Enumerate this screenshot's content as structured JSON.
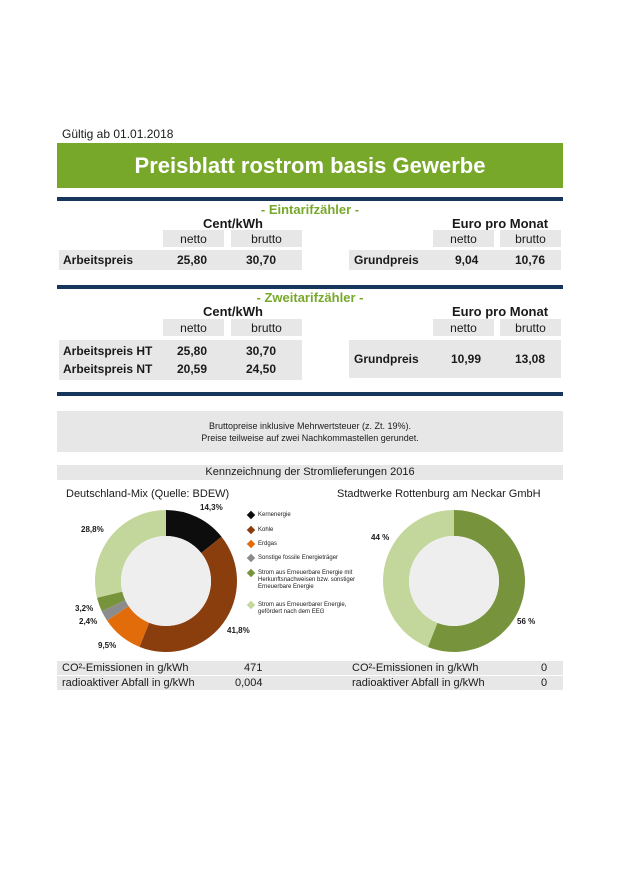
{
  "valid_from": "Gültig ab 01.01.2018",
  "title": "Preisblatt rostrom basis Gewerbe",
  "col_labels": {
    "cent_kwh": "Cent/kWh",
    "euro_month": "Euro pro Monat",
    "netto": "netto",
    "brutto": "brutto"
  },
  "eintarif": {
    "heading": "- Eintarifzähler -",
    "arbeitspreis_label": "Arbeitspreis",
    "arbeitspreis_netto": "25,80",
    "arbeitspreis_brutto": "30,70",
    "grundpreis_label": "Grundpreis",
    "grundpreis_netto": "9,04",
    "grundpreis_brutto": "10,76"
  },
  "zweitarif": {
    "heading": "- Zweitarifzähler -",
    "ht_label": "Arbeitspreis HT",
    "ht_netto": "25,80",
    "ht_brutto": "30,70",
    "nt_label": "Arbeitspreis NT",
    "nt_netto": "20,59",
    "nt_brutto": "24,50",
    "grundpreis_label": "Grundpreis",
    "grundpreis_netto": "10,99",
    "grundpreis_brutto": "13,08"
  },
  "note": {
    "line1": "Bruttopreise inklusive Mehrwertsteuer (z. Zt. 19%).",
    "line2": "Preise teilweise auf zwei Nachkommastellen gerundet."
  },
  "kennzeichnung_title": "Kennzeichnung der Stromlieferungen 2016",
  "chart_data": [
    {
      "type": "pie",
      "title": "Deutschland-Mix (Quelle: BDEW)",
      "categories": [
        "Kernenergie",
        "Kohle",
        "Erdgas",
        "Sonstige fossile Energieträger",
        "Strom aus Erneuerbare Energie mit Herkunftsnachweisen bzw. sonstiger Erneuerbare Energie",
        "Strom aus Erneuerbarer Energie, gefördert nach dem EEG"
      ],
      "values": [
        14.3,
        41.8,
        9.5,
        2.4,
        3.2,
        28.8
      ],
      "labels": [
        "14,3%",
        "41,8%",
        "9,5%",
        "2,4%",
        "3,2%",
        "28,8%"
      ],
      "colors": [
        "#0d0d0d",
        "#8b3e0d",
        "#e36c0a",
        "#8c8c8c",
        "#77933c",
        "#c3d69b"
      ]
    },
    {
      "type": "pie",
      "title": "Stadtwerke Rottenburg am Neckar GmbH",
      "categories": [
        "Strom aus Erneuerbare Energie mit Herkunftsnachweisen bzw. sonstiger Erneuerbare Energie",
        "Strom aus Erneuerbarer Energie, gefördert nach dem EEG"
      ],
      "values": [
        56,
        44
      ],
      "labels": [
        "56 %",
        "44 %"
      ],
      "colors": [
        "#77933c",
        "#c3d69b"
      ]
    }
  ],
  "legend": [
    {
      "label": "Kernenergie",
      "color": "#0d0d0d"
    },
    {
      "label": "Kohle",
      "color": "#8b3e0d"
    },
    {
      "label": "Erdgas",
      "color": "#e36c0a"
    },
    {
      "label": "Sonstige fossile Energieträger",
      "color": "#8c8c8c"
    },
    {
      "label": "Strom aus Erneuerbare Energie mit Herkunftsnachweisen bzw. sonstiger Erneuerbare Energie",
      "color": "#77933c"
    },
    {
      "label": "Strom aus Erneuerbarer Energie, gefördert nach dem EEG",
      "color": "#c3d69b"
    }
  ],
  "emissions": {
    "co2_label": "CO²-Emissionen in g/kWh",
    "waste_label": "radioaktiver Abfall in g/kWh",
    "de_co2": "471",
    "de_waste": "0,004",
    "sw_co2": "0",
    "sw_waste": "0"
  },
  "colors": {
    "accent_green": "#78a82a",
    "navy": "#17365d",
    "grey_band": "#e7e7e7"
  }
}
